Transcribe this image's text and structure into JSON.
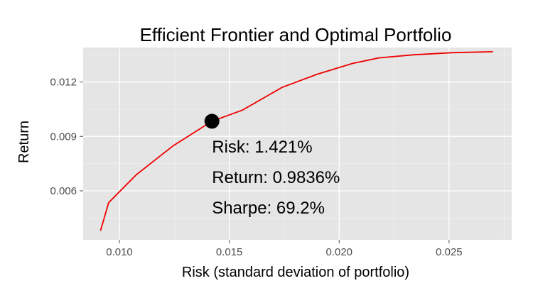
{
  "chart_data": {
    "type": "line",
    "title": "Efficient Frontier and Optimal Portfolio",
    "xlabel": "Risk (standard deviation of portfolio)",
    "ylabel": "Return",
    "xlim": [
      0.00835,
      0.02785
    ],
    "ylim": [
      0.0033,
      0.0139
    ],
    "x_ticks": [
      0.01,
      0.015,
      0.02,
      0.025
    ],
    "x_tick_labels": [
      "0.010",
      "0.015",
      "0.020",
      "0.025"
    ],
    "y_ticks": [
      0.006,
      0.009,
      0.012
    ],
    "y_tick_labels": [
      "0.006",
      "0.009",
      "0.012"
    ],
    "grid": true,
    "panel_background": "#e5e5e5",
    "grid_color": "#ffffff",
    "series": [
      {
        "color": "#ee0000",
        "x": [
          0.00914,
          0.00951,
          0.01078,
          0.01244,
          0.01421,
          0.0156,
          0.0174,
          0.019,
          0.0206,
          0.0218,
          0.0234,
          0.0252,
          0.027
        ],
        "y": [
          0.0038,
          0.00535,
          0.0069,
          0.00848,
          0.009836,
          0.01045,
          0.0117,
          0.01243,
          0.01302,
          0.01333,
          0.0135,
          0.01362,
          0.01367
        ]
      }
    ],
    "optimal_point": {
      "x": 0.01421,
      "y": 0.009836,
      "color": "#000000"
    },
    "annotations": [
      "Risk: 1.421%",
      "Return: 0.9836%",
      "Sharpe: 69.2%"
    ]
  }
}
